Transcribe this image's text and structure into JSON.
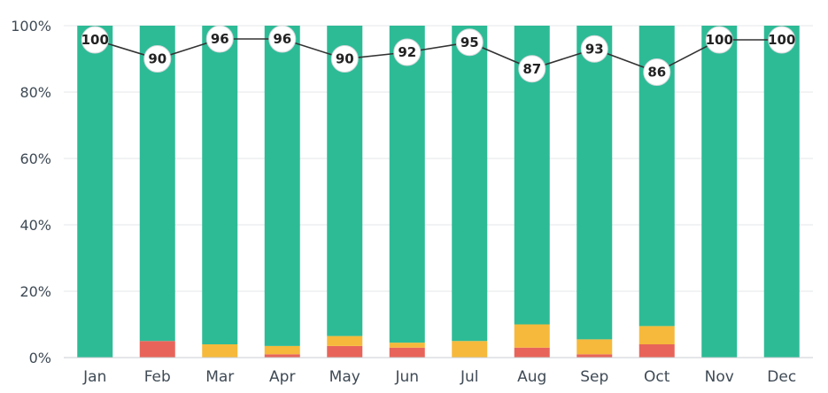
{
  "chart_data": {
    "type": "bar",
    "stacked": true,
    "categories": [
      "Jan",
      "Feb",
      "Mar",
      "Apr",
      "May",
      "Jun",
      "Jul",
      "Aug",
      "Sep",
      "Oct",
      "Nov",
      "Dec"
    ],
    "y_ticks": [
      "0%",
      "20%",
      "40%",
      "60%",
      "80%",
      "100%"
    ],
    "ylim": [
      0,
      100
    ],
    "grid": true,
    "series": [
      {
        "values": [
          0,
          5,
          0,
          1,
          3.5,
          3,
          0,
          3,
          1,
          4,
          0,
          0
        ],
        "color": "#e8645a"
      },
      {
        "values": [
          0,
          0,
          4,
          2.5,
          3,
          1.5,
          5,
          7,
          4.5,
          5.5,
          0,
          0
        ],
        "color": "#f6b93b"
      },
      {
        "values": [
          100,
          95,
          96,
          96.5,
          93.5,
          95.5,
          95,
          90,
          94.5,
          90.5,
          100,
          100
        ],
        "color": "#2dbb96"
      }
    ],
    "line": {
      "values": [
        100,
        90,
        96,
        96,
        90,
        92,
        95,
        87,
        93,
        86,
        100,
        100
      ],
      "labels": [
        "100",
        "90",
        "96",
        "96",
        "90",
        "92",
        "95",
        "87",
        "93",
        "86",
        "100",
        "100"
      ],
      "color": "#333333"
    }
  }
}
